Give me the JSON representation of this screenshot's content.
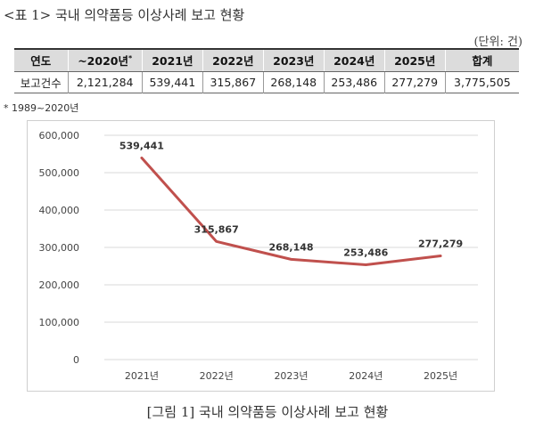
{
  "table": {
    "title": "<표 1> 국내 의약품등 이상사례 보고 현황",
    "unit": "(단위: 건)",
    "headers": [
      "연도",
      "~2020년",
      "2021년",
      "2022년",
      "2023년",
      "2024년",
      "2025년",
      "합계"
    ],
    "header_footnote_mark": "*",
    "row_label": "보고건수",
    "values": [
      "2,121,284",
      "539,441",
      "315,867",
      "268,148",
      "253,486",
      "277,279",
      "3,775,505"
    ],
    "footnote": "* 1989~2020년"
  },
  "figure_caption": "[그림 1] 국내 의약품등 이상사례 보고 현황",
  "colors": {
    "line": "#c0504d",
    "grid": "#d9d9d9",
    "header_bg": "#dcdcdc"
  },
  "chart_data": {
    "type": "line",
    "categories": [
      "2021년",
      "2022년",
      "2023년",
      "2024년",
      "2025년"
    ],
    "series": [
      {
        "values": [
          539441,
          315867,
          268148,
          253486,
          277279
        ]
      }
    ],
    "data_labels": [
      "539,441",
      "315,867",
      "268,148",
      "253,486",
      "277,279"
    ],
    "y_ticks": [
      0,
      100000,
      200000,
      300000,
      400000,
      500000,
      600000
    ],
    "y_tick_labels": [
      "0",
      "100,000",
      "200,000",
      "300,000",
      "400,000",
      "500,000",
      "600,000"
    ],
    "ylim": [
      0,
      600000
    ],
    "grid": true,
    "legend": false
  }
}
